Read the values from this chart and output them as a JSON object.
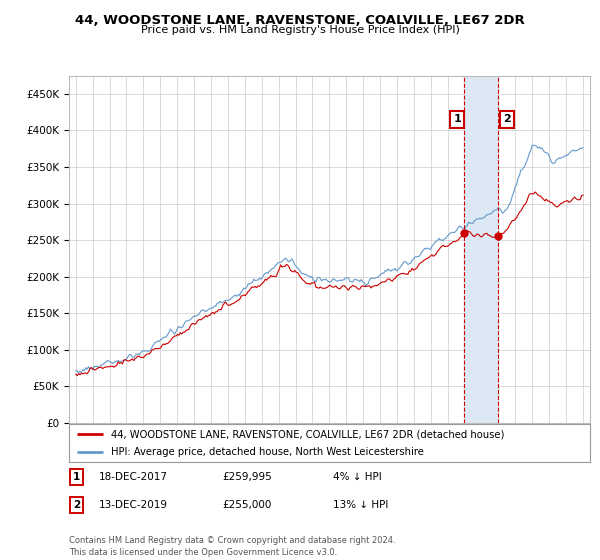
{
  "title": "44, WOODSTONE LANE, RAVENSTONE, COALVILLE, LE67 2DR",
  "subtitle": "Price paid vs. HM Land Registry's House Price Index (HPI)",
  "legend_line1": "44, WOODSTONE LANE, RAVENSTONE, COALVILLE, LE67 2DR (detached house)",
  "legend_line2": "HPI: Average price, detached house, North West Leicestershire",
  "annotation1_date": "18-DEC-2017",
  "annotation1_price": "£259,995",
  "annotation1_note": "4% ↓ HPI",
  "annotation2_date": "13-DEC-2019",
  "annotation2_price": "£255,000",
  "annotation2_note": "13% ↓ HPI",
  "footer": "Contains HM Land Registry data © Crown copyright and database right 2024.\nThis data is licensed under the Open Government Licence v3.0.",
  "ylim": [
    0,
    475000
  ],
  "yticks": [
    0,
    50000,
    100000,
    150000,
    200000,
    250000,
    300000,
    350000,
    400000,
    450000
  ],
  "ytick_labels": [
    "£0",
    "£50K",
    "£100K",
    "£150K",
    "£200K",
    "£250K",
    "£300K",
    "£350K",
    "£400K",
    "£450K"
  ],
  "property_color": "#cc0000",
  "hpi_color": "#6699cc",
  "sale1_year": 2017.96,
  "sale1_price": 259995,
  "sale2_year": 2019.95,
  "sale2_price": 255000,
  "background_color": "#ffffff",
  "grid_color": "#cccccc",
  "span_color": "#dce9f5",
  "vline_color": "#cc0000"
}
